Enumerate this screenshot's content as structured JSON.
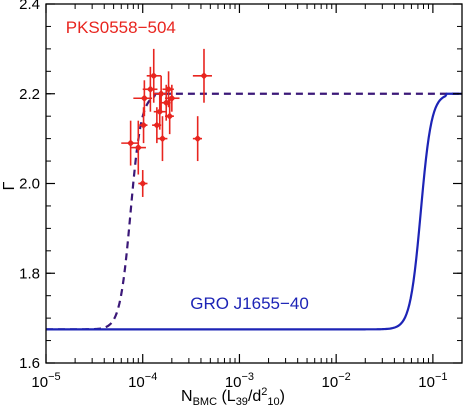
{
  "chart_data": {
    "type": "scatter",
    "title": "",
    "xlabel": "N_BMC (L_39/d^2_10)",
    "xlabel_parts": {
      "main": "N",
      "main_sub": "BMC",
      "open": " (L",
      "sub1": "39",
      "slash": "/d",
      "sup": "2",
      "sub2": "10",
      "close": ")"
    },
    "ylabel": "Γ",
    "xscale": "log",
    "xlim": [
      1e-05,
      0.2
    ],
    "ylim": [
      1.6,
      2.4
    ],
    "grid": false,
    "x_ticks": [
      {
        "value": 1e-05,
        "base": "10",
        "exp": "−5"
      },
      {
        "value": 0.0001,
        "base": "10",
        "exp": "−4"
      },
      {
        "value": 0.001,
        "base": "10",
        "exp": "−3"
      },
      {
        "value": 0.01,
        "base": "10",
        "exp": "−2"
      },
      {
        "value": 0.1,
        "base": "10",
        "exp": "−1"
      }
    ],
    "y_ticks": [
      {
        "value": 1.6,
        "label": "1.6"
      },
      {
        "value": 1.8,
        "label": "1.8"
      },
      {
        "value": 2.0,
        "label": "2.0"
      },
      {
        "value": 2.2,
        "label": "2.2"
      },
      {
        "value": 2.4,
        "label": "2.4"
      }
    ],
    "series": [
      {
        "name": "PKS0558−504",
        "kind": "scatter",
        "color": "#e8251f",
        "points": [
          {
            "x": 7.5e-05,
            "y": 2.09,
            "x_lo": 6e-05,
            "x_hi": 9e-05,
            "y_err": 0.05
          },
          {
            "x": 9e-05,
            "y": 2.08,
            "x_lo": 7.5e-05,
            "x_hi": 0.000108,
            "y_err": 0.06
          },
          {
            "x": 0.0001,
            "y": 2.0,
            "x_lo": 9e-05,
            "x_hi": 0.000112,
            "y_err": 0.03
          },
          {
            "x": 0.000102,
            "y": 2.13,
            "x_lo": 9.2e-05,
            "x_hi": 0.000112,
            "y_err": 0.04
          },
          {
            "x": 0.000104,
            "y": 2.19,
            "x_lo": 8e-05,
            "x_hi": 0.000125,
            "y_err": 0.04
          },
          {
            "x": 0.00012,
            "y": 2.21,
            "x_lo": 0.0001,
            "x_hi": 0.000142,
            "y_err": 0.05
          },
          {
            "x": 0.00013,
            "y": 2.24,
            "x_lo": 0.00011,
            "x_hi": 0.000155,
            "y_err": 0.06
          },
          {
            "x": 0.00014,
            "y": 2.13,
            "x_lo": 0.000125,
            "x_hi": 0.000155,
            "y_err": 0.04
          },
          {
            "x": 0.000155,
            "y": 2.2,
            "x_lo": 0.00013,
            "x_hi": 0.000175,
            "y_err": 0.04
          },
          {
            "x": 0.00015,
            "y": 2.16,
            "x_lo": 0.00013,
            "x_hi": 0.000175,
            "y_err": 0.04
          },
          {
            "x": 0.00016,
            "y": 2.1,
            "x_lo": 0.00014,
            "x_hi": 0.00018,
            "y_err": 0.05
          },
          {
            "x": 0.000175,
            "y": 2.18,
            "x_lo": 0.000155,
            "x_hi": 0.000195,
            "y_err": 0.04
          },
          {
            "x": 0.000185,
            "y": 2.21,
            "x_lo": 0.00016,
            "x_hi": 0.00021,
            "y_err": 0.04
          },
          {
            "x": 0.00019,
            "y": 2.15,
            "x_lo": 0.00017,
            "x_hi": 0.00021,
            "y_err": 0.04
          },
          {
            "x": 0.0002,
            "y": 2.19,
            "x_lo": 0.00017,
            "x_hi": 0.00024,
            "y_err": 0.03
          },
          {
            "x": 0.00037,
            "y": 2.1,
            "x_lo": 0.00033,
            "x_hi": 0.00041,
            "y_err": 0.05
          },
          {
            "x": 0.00043,
            "y": 2.24,
            "x_lo": 0.00033,
            "x_hi": 0.00052,
            "y_err": 0.06
          }
        ]
      },
      {
        "name": "",
        "kind": "line",
        "style": "dashed",
        "color": "#3b1878",
        "gamma_min": 1.675,
        "gamma_max": 2.2,
        "x_mid": 7.5e-05,
        "x_sat": 0.000135
      },
      {
        "name": "GRO J1655−40",
        "kind": "line",
        "style": "solid",
        "color": "#1d24b6",
        "gamma_min": 1.675,
        "gamma_max": 2.2,
        "x_mid": 0.075,
        "x_sat": 0.135
      }
    ],
    "annotations": [
      {
        "text": "PKS0558−504",
        "color": "#e8251f",
        "x": 1.6e-05,
        "y": 2.335
      },
      {
        "text": "GRO J1655−40",
        "color": "#1d24b6",
        "x": 0.00031,
        "y": 1.72
      }
    ]
  }
}
